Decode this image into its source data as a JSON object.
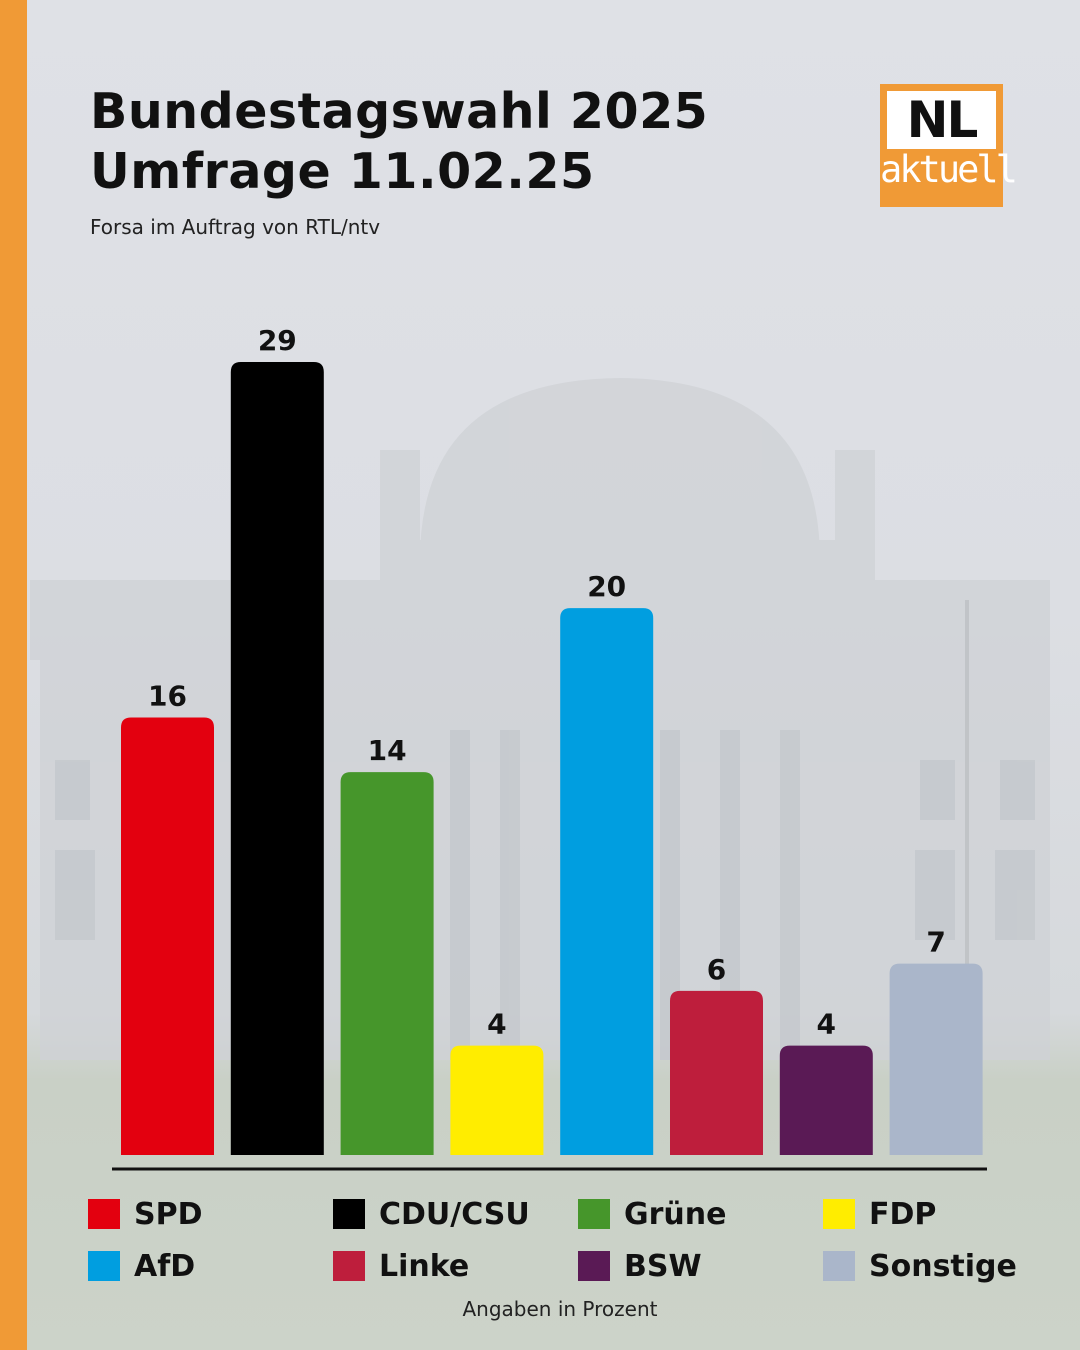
{
  "header": {
    "title_line1": "Bundestagswahl 2025",
    "title_line2": "Umfrage 11.02.25",
    "subtitle": "Forsa im Auftrag von RTL/ntv"
  },
  "logo": {
    "main": "NL",
    "sub": "aktuell"
  },
  "chart_data": {
    "type": "bar",
    "categories": [
      "SPD",
      "CDU/CSU",
      "Grüne",
      "FDP",
      "AfD",
      "Linke",
      "BSW",
      "Sonstige"
    ],
    "values": [
      16,
      29,
      14,
      4,
      20,
      6,
      4,
      7
    ],
    "colors": [
      "#e3000f",
      "#000000",
      "#46962b",
      "#ffed00",
      "#009ee0",
      "#be1e3c",
      "#5a1a55",
      "#aab6ca"
    ],
    "title": "Bundestagswahl 2025",
    "ylim": [
      0,
      29
    ],
    "grid": false,
    "legend_position": "bottom"
  },
  "footnote": "Angaben in Prozent",
  "colors": {
    "accent": "#f09a36"
  }
}
